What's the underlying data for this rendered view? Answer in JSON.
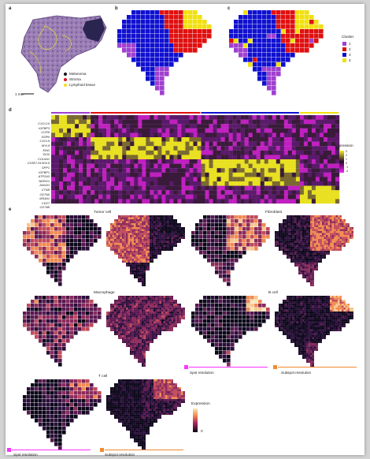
{
  "panel_labels": [
    "a",
    "b",
    "c",
    "d",
    "e"
  ],
  "panel_a": {
    "legend": [
      {
        "label": "Melanoma",
        "color": "#111111"
      },
      {
        "label": "Stroma",
        "color": "#e01020"
      },
      {
        "label": "Lymphoid tissue",
        "color": "#f0e020"
      }
    ],
    "scalebar": "1 mm"
  },
  "cluster_legend": {
    "title": "Cluster",
    "items": [
      {
        "label": "1",
        "color": "#a040d0"
      },
      {
        "label": "2",
        "color": "#e01010"
      },
      {
        "label": "3",
        "color": "#1010d0"
      },
      {
        "label": "4",
        "color": "#f0e010"
      }
    ]
  },
  "heatmap": {
    "genes": [
      "CXCL10",
      "IGFBP3",
      "CCR6",
      "SSPN",
      "CXCL9",
      "MYL9",
      "ENG",
      "DCN",
      "COL6A1",
      "CH507-513H4.5",
      "SPP1",
      "IGFBP1",
      "ATP2A3",
      "NDRG1",
      "ANXA1",
      "CTSB",
      "CD79A",
      "MS4A1",
      "CD27",
      "CD79B"
    ],
    "colorbar_title": "Expression",
    "colorbar_ticks": [
      "3",
      "2",
      "1",
      "0",
      "-1",
      "-2"
    ],
    "group_colors": [
      "#a040d0",
      "#e01010",
      "#1010d0",
      "#f0e010"
    ]
  },
  "spatial_panels": [
    {
      "title": "Tumor cell"
    },
    {
      "title": "Fibroblast"
    },
    {
      "title": "Macrophage"
    },
    {
      "title": "B cell"
    },
    {
      "title": "T cell"
    }
  ],
  "resolution_labels": {
    "spot": "Spot resolution",
    "subspot": "Subspot resolution",
    "spot_color": "#ff30ff",
    "subspot_color": "#f08a30"
  },
  "expression_colorbar": {
    "title": "Expression",
    "min_label": "0"
  }
}
